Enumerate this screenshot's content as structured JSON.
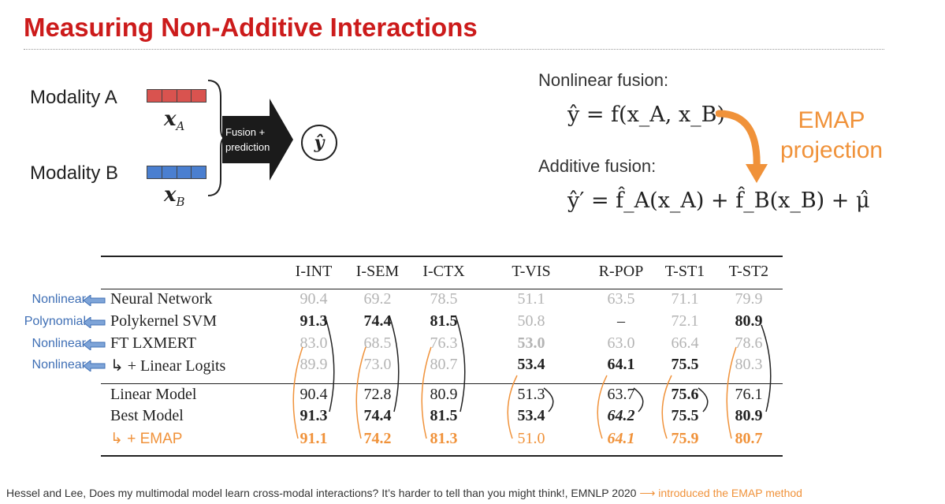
{
  "title": "Measuring Non-Additive Interactions",
  "diagram": {
    "modality_a": "Modality A",
    "modality_b": "Modality B",
    "var_a": "x",
    "var_a_sub": "A",
    "var_b": "x",
    "var_b_sub": "B",
    "fusion_line1": "Fusion +",
    "fusion_line2": "prediction",
    "output": "ŷ",
    "colors": {
      "modality_a": "#d9534f",
      "modality_b": "#4a7fd0",
      "accent": "#f0923a"
    }
  },
  "fusion": {
    "nonlinear_label": "Nonlinear fusion:",
    "nonlinear_eq": "ŷ = f(x_A, x_B)",
    "additive_label": "Additive fusion:",
    "additive_eq": "ŷ′ = f̂_A(x_A) + f̂_B(x_B) + μ̂",
    "emap_line1": "EMAP",
    "emap_line2": "projection"
  },
  "table": {
    "columns": [
      "I-INT",
      "I-SEM",
      "I-CTX",
      "T-VIS",
      "R-POP",
      "T-ST1",
      "T-ST2"
    ],
    "rows": [
      {
        "name": "Neural Network",
        "tag": "Nonlinear",
        "cells": [
          {
            "v": "90.4",
            "s": "faded"
          },
          {
            "v": "69.2",
            "s": "faded"
          },
          {
            "v": "78.5",
            "s": "faded"
          },
          {
            "v": "51.1",
            "s": "faded"
          },
          {
            "v": "63.5",
            "s": "faded"
          },
          {
            "v": "71.1",
            "s": "faded"
          },
          {
            "v": "79.9",
            "s": "faded"
          }
        ]
      },
      {
        "name": "Polykernel SVM",
        "tag": "Polynomial",
        "cells": [
          {
            "v": "91.3",
            "s": "bold"
          },
          {
            "v": "74.4",
            "s": "bold"
          },
          {
            "v": "81.5",
            "s": "bold"
          },
          {
            "v": "50.8",
            "s": "faded"
          },
          {
            "v": "–",
            "s": ""
          },
          {
            "v": "72.1",
            "s": "faded"
          },
          {
            "v": "80.9",
            "s": "bold"
          }
        ]
      },
      {
        "name": "FT LXMERT",
        "tag": "Nonlinear",
        "cells": [
          {
            "v": "83.0",
            "s": "faded"
          },
          {
            "v": "68.5",
            "s": "faded"
          },
          {
            "v": "76.3",
            "s": "faded"
          },
          {
            "v": "53.0",
            "s": "faded bold"
          },
          {
            "v": "63.0",
            "s": "faded"
          },
          {
            "v": "66.4",
            "s": "faded"
          },
          {
            "v": "78.6",
            "s": "faded"
          }
        ]
      },
      {
        "name": "↳ + Linear Logits",
        "tag": "Nonlinear",
        "cells": [
          {
            "v": "89.9",
            "s": "faded"
          },
          {
            "v": "73.0",
            "s": "faded"
          },
          {
            "v": "80.7",
            "s": "faded"
          },
          {
            "v": "53.4",
            "s": "bold"
          },
          {
            "v": "64.1",
            "s": "bold"
          },
          {
            "v": "75.5",
            "s": "bold"
          },
          {
            "v": "80.3",
            "s": "faded"
          }
        ]
      },
      {
        "name": "Linear Model",
        "tag": "",
        "cells": [
          {
            "v": "90.4",
            "s": ""
          },
          {
            "v": "72.8",
            "s": ""
          },
          {
            "v": "80.9",
            "s": ""
          },
          {
            "v": "51.3",
            "s": ""
          },
          {
            "v": "63.7",
            "s": ""
          },
          {
            "v": "75.6",
            "s": "bold"
          },
          {
            "v": "76.1",
            "s": ""
          }
        ]
      },
      {
        "name": "Best Model",
        "tag": "",
        "cells": [
          {
            "v": "91.3",
            "s": "bold"
          },
          {
            "v": "74.4",
            "s": "bold"
          },
          {
            "v": "81.5",
            "s": "bold"
          },
          {
            "v": "53.4",
            "s": "bold"
          },
          {
            "v": "64.2",
            "s": "bold italic"
          },
          {
            "v": "75.5",
            "s": "bold"
          },
          {
            "v": "80.9",
            "s": "bold"
          }
        ]
      },
      {
        "name": "↳ + EMAP",
        "tag": "",
        "cells": [
          {
            "v": "91.1",
            "s": "bold orange"
          },
          {
            "v": "74.2",
            "s": "bold orange"
          },
          {
            "v": "81.3",
            "s": "bold orange"
          },
          {
            "v": "51.0",
            "s": "orange"
          },
          {
            "v": "64.1",
            "s": "bold italic orange"
          },
          {
            "v": "75.9",
            "s": "bold orange"
          },
          {
            "v": "80.7",
            "s": "bold orange"
          }
        ]
      }
    ]
  },
  "footer": {
    "citation": "Hessel and Lee, Does my multimodal model learn cross-modal interactions? It’s harder to tell than you might think!, EMNLP 2020",
    "arrow": "⟶",
    "note": "introduced the EMAP method"
  }
}
